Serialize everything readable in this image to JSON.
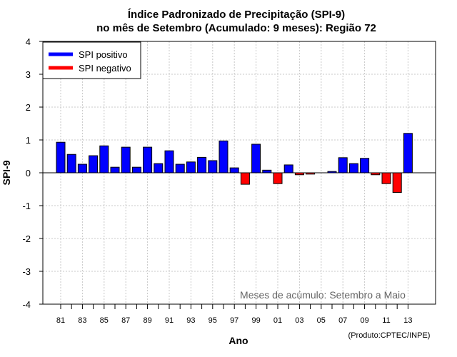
{
  "chart_data": {
    "type": "bar",
    "title_line1": "Índice Padronizado de Precipitação (SPI-9)",
    "title_line2": "no mês de Setembro (Acumulado: 9 meses): Região 72",
    "xlabel": "Ano",
    "ylabel": "SPI-9",
    "ylim": [
      -4,
      4
    ],
    "yticks": [
      "-4",
      "-3",
      "-2",
      "-1",
      "0",
      "1",
      "2",
      "3",
      "4"
    ],
    "grid": true,
    "legend": {
      "placement": "top-left",
      "positive_label": "SPI positivo",
      "negative_label": "SPI negativo"
    },
    "colors": {
      "positive": "#0000ff",
      "negative": "#ff0000",
      "grid": "#c8c8c8"
    },
    "categories": [
      "81",
      "82",
      "83",
      "84",
      "85",
      "86",
      "87",
      "88",
      "89",
      "90",
      "91",
      "92",
      "93",
      "94",
      "95",
      "96",
      "97",
      "98",
      "99",
      "00",
      "01",
      "02",
      "03",
      "04",
      "05",
      "06",
      "07",
      "08",
      "09",
      "10",
      "11",
      "12",
      "13"
    ],
    "xtick_labels": [
      "81",
      "83",
      "85",
      "87",
      "89",
      "91",
      "93",
      "95",
      "97",
      "99",
      "01",
      "03",
      "05",
      "07",
      "09",
      "11",
      "13"
    ],
    "values": [
      0.93,
      0.56,
      0.26,
      0.52,
      0.82,
      0.17,
      0.78,
      0.17,
      0.78,
      0.28,
      0.67,
      0.26,
      0.33,
      0.47,
      0.37,
      0.97,
      0.15,
      -0.35,
      0.87,
      0.08,
      -0.33,
      0.24,
      -0.06,
      -0.04,
      0.0,
      0.04,
      0.46,
      0.28,
      0.44,
      -0.06,
      -0.33,
      -0.6,
      1.2
    ],
    "annotation": "Meses de acúmulo: Setembro a Maio",
    "credit": "(Produto:CPTEC/INPE)"
  }
}
